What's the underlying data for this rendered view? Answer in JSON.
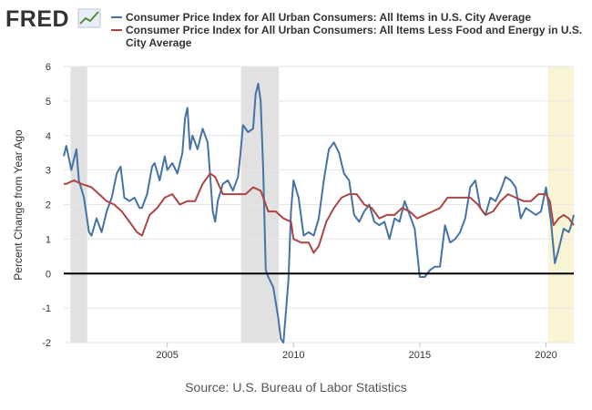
{
  "logo": {
    "text": "FRED"
  },
  "legend": [
    {
      "label": "Consumer Price Index for All Urban Consumers: All Items in U.S. City Average",
      "color": "#4572A7"
    },
    {
      "label": "Consumer Price Index for All Urban Consumers: All Items Less Food and Energy in U.S. City Average",
      "color": "#AA4643"
    }
  ],
  "source": "Source: U.S. Bureau of Labor Statistics",
  "chart_data": {
    "type": "line",
    "title": "",
    "xlabel": "",
    "ylabel": "Percent Change from Year Ago",
    "xlim": [
      2000.9,
      2021.1
    ],
    "ylim": [
      -2,
      6
    ],
    "yticks": [
      -2,
      -1,
      0,
      1,
      2,
      3,
      4,
      5,
      6
    ],
    "xticks": [
      2005,
      2010,
      2015,
      2020
    ],
    "grid": "horizontal",
    "zero_line": true,
    "shaded_periods": [
      {
        "start": 2001.17,
        "end": 2001.83,
        "color": "#e1e1e1"
      },
      {
        "start": 2007.92,
        "end": 2009.42,
        "color": "#e1e1e1"
      },
      {
        "start": 2020.08,
        "end": 2021.1,
        "color": "#f8f5d6"
      }
    ],
    "series": [
      {
        "color": "#4572A7",
        "x": [
          2000.9,
          2001.0,
          2001.2,
          2001.4,
          2001.5,
          2001.7,
          2001.9,
          2002.0,
          2002.2,
          2002.4,
          2002.6,
          2002.8,
          2003.0,
          2003.15,
          2003.3,
          2003.5,
          2003.7,
          2003.9,
          2004.0,
          2004.2,
          2004.4,
          2004.5,
          2004.7,
          2004.9,
          2005.0,
          2005.2,
          2005.4,
          2005.6,
          2005.7,
          2005.8,
          2005.9,
          2006.0,
          2006.2,
          2006.4,
          2006.6,
          2006.8,
          2006.9,
          2007.0,
          2007.2,
          2007.4,
          2007.6,
          2007.8,
          2007.9,
          2008.0,
          2008.2,
          2008.4,
          2008.5,
          2008.6,
          2008.7,
          2008.8,
          2008.9,
          2009.0,
          2009.2,
          2009.4,
          2009.5,
          2009.6,
          2009.8,
          2009.9,
          2010.0,
          2010.2,
          2010.4,
          2010.6,
          2010.8,
          2011.0,
          2011.2,
          2011.4,
          2011.6,
          2011.8,
          2012.0,
          2012.2,
          2012.4,
          2012.6,
          2012.8,
          2013.0,
          2013.2,
          2013.4,
          2013.6,
          2013.8,
          2014.0,
          2014.2,
          2014.4,
          2014.6,
          2014.8,
          2015.0,
          2015.2,
          2015.4,
          2015.6,
          2015.8,
          2016.0,
          2016.2,
          2016.4,
          2016.6,
          2016.8,
          2017.0,
          2017.2,
          2017.4,
          2017.6,
          2017.8,
          2018.0,
          2018.2,
          2018.4,
          2018.6,
          2018.8,
          2019.0,
          2019.2,
          2019.4,
          2019.6,
          2019.8,
          2020.0,
          2020.2,
          2020.35,
          2020.5,
          2020.7,
          2020.9,
          2021.0,
          2021.1
        ],
        "values": [
          3.4,
          3.7,
          3.0,
          3.6,
          2.7,
          2.2,
          1.2,
          1.1,
          1.6,
          1.2,
          1.8,
          2.2,
          2.9,
          3.1,
          2.2,
          2.1,
          2.2,
          1.9,
          1.9,
          2.3,
          3.1,
          3.2,
          2.7,
          3.4,
          3.0,
          3.2,
          2.9,
          3.5,
          4.5,
          4.8,
          3.6,
          4.0,
          3.6,
          4.2,
          3.8,
          1.8,
          1.5,
          2.1,
          2.6,
          2.7,
          2.4,
          2.8,
          3.5,
          4.3,
          4.1,
          4.2,
          5.2,
          5.5,
          5.0,
          3.0,
          0.1,
          -0.1,
          -0.4,
          -1.3,
          -1.9,
          -2.0,
          -0.2,
          1.8,
          2.7,
          2.2,
          1.1,
          1.2,
          1.1,
          1.6,
          2.7,
          3.6,
          3.8,
          3.5,
          2.9,
          2.7,
          1.7,
          1.5,
          1.8,
          2.0,
          1.5,
          1.4,
          1.5,
          1.0,
          1.6,
          1.5,
          2.1,
          1.7,
          1.3,
          -0.1,
          -0.1,
          0.1,
          0.2,
          0.2,
          1.4,
          0.9,
          1.0,
          1.2,
          1.6,
          2.5,
          2.7,
          1.9,
          1.7,
          2.2,
          2.1,
          2.4,
          2.8,
          2.7,
          2.5,
          1.6,
          1.9,
          1.8,
          1.7,
          1.8,
          2.5,
          1.5,
          0.3,
          0.7,
          1.3,
          1.2,
          1.4,
          1.7
        ]
      },
      {
        "color": "#AA4643",
        "x": [
          2000.9,
          2001.0,
          2001.3,
          2001.6,
          2002.0,
          2002.3,
          2002.6,
          2002.9,
          2003.2,
          2003.5,
          2003.8,
          2004.0,
          2004.3,
          2004.6,
          2004.9,
          2005.2,
          2005.5,
          2005.8,
          2006.1,
          2006.4,
          2006.7,
          2006.9,
          2007.2,
          2007.5,
          2007.8,
          2008.1,
          2008.4,
          2008.7,
          2009.0,
          2009.3,
          2009.6,
          2009.9,
          2010.0,
          2010.3,
          2010.6,
          2010.8,
          2011.0,
          2011.3,
          2011.6,
          2011.9,
          2012.2,
          2012.5,
          2012.8,
          2013.1,
          2013.4,
          2013.7,
          2014.0,
          2014.3,
          2014.6,
          2014.9,
          2015.2,
          2015.5,
          2015.8,
          2016.1,
          2016.4,
          2016.7,
          2017.0,
          2017.3,
          2017.6,
          2017.9,
          2018.2,
          2018.5,
          2018.8,
          2019.1,
          2019.4,
          2019.7,
          2020.0,
          2020.15,
          2020.3,
          2020.5,
          2020.7,
          2020.9,
          2021.1
        ],
        "values": [
          2.6,
          2.6,
          2.7,
          2.6,
          2.5,
          2.3,
          2.1,
          2.0,
          1.8,
          1.5,
          1.2,
          1.1,
          1.7,
          1.9,
          2.2,
          2.3,
          2.0,
          2.1,
          2.1,
          2.6,
          2.9,
          2.8,
          2.3,
          2.3,
          2.3,
          2.3,
          2.5,
          2.4,
          1.8,
          1.8,
          1.6,
          1.5,
          1.0,
          0.9,
          0.9,
          0.6,
          0.8,
          1.5,
          1.9,
          2.2,
          2.3,
          2.3,
          2.0,
          1.9,
          1.6,
          1.7,
          1.7,
          1.9,
          1.8,
          1.6,
          1.7,
          1.8,
          1.9,
          2.2,
          2.2,
          2.2,
          2.2,
          2.0,
          1.7,
          1.8,
          2.1,
          2.3,
          2.2,
          2.1,
          2.1,
          2.3,
          2.3,
          2.1,
          1.4,
          1.6,
          1.7,
          1.6,
          1.4
        ]
      }
    ]
  }
}
